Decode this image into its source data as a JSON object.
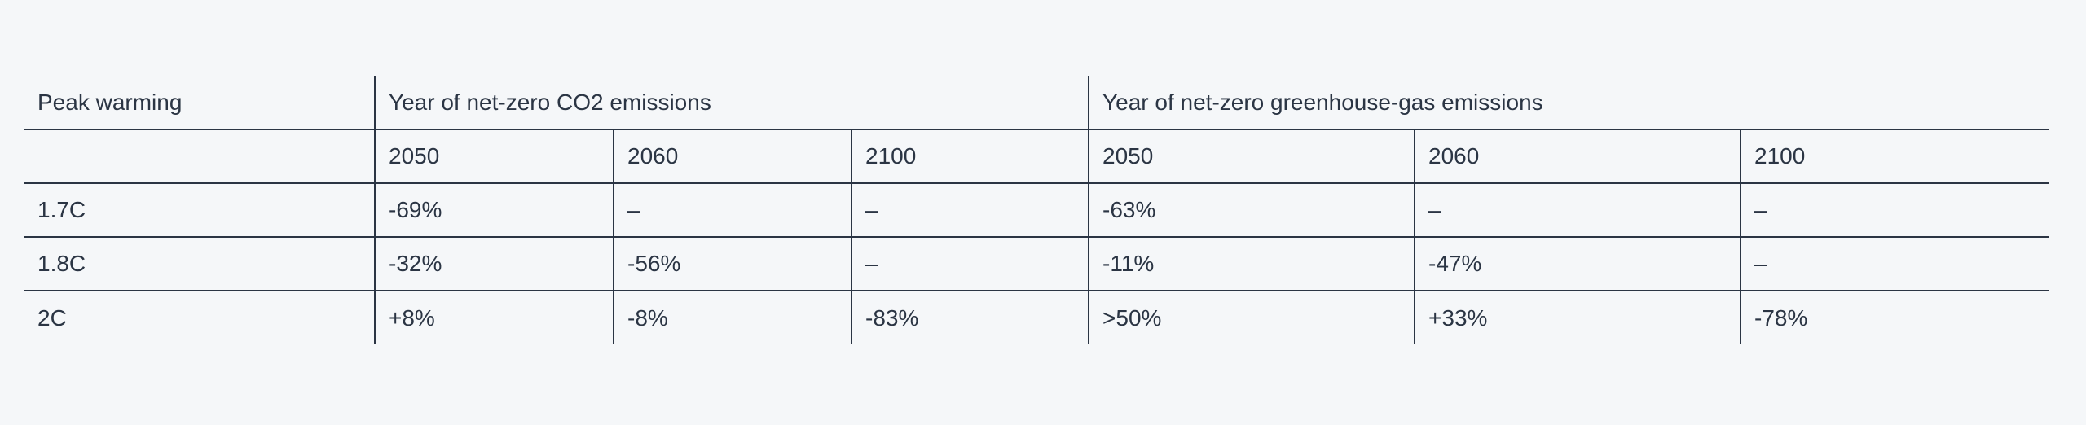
{
  "table": {
    "header": [
      "Peak warming",
      "Year of net-zero CO2 emissions",
      "Year of net-zero greenhouse-gas emissions"
    ],
    "subheader": [
      "2050",
      "2060",
      "2100",
      "2050",
      "2060",
      "2100"
    ],
    "rows": [
      [
        "1.7C",
        "-69%",
        "–",
        "–",
        "-63%",
        "–",
        "–"
      ],
      [
        "1.8C",
        "-32%",
        "-56%",
        "–",
        "-11%",
        "-47%",
        "–"
      ],
      [
        "2C",
        "+8%",
        "-8%",
        "-83%",
        ">50%",
        "+33%",
        "-78%"
      ]
    ]
  }
}
